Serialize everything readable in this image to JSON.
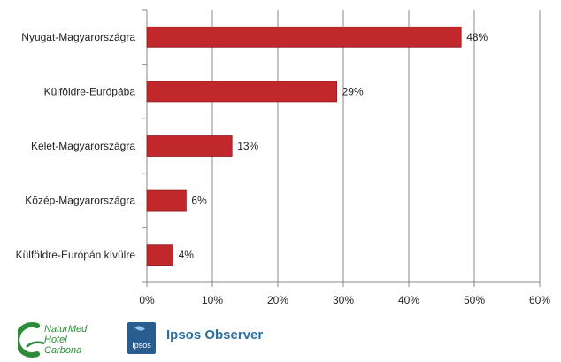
{
  "chart_data": {
    "type": "bar",
    "orientation": "horizontal",
    "categories": [
      "Nyugat-Magyarországra",
      "Külföldre-Európába",
      "Kelet-Magyarországra",
      "Közép-Magyarországra",
      "Külföldre-Európán kívülre"
    ],
    "values": [
      48,
      29,
      13,
      6,
      4
    ],
    "data_labels": [
      "48%",
      "29%",
      "13%",
      "6%",
      "4%"
    ],
    "xlim": [
      0,
      60
    ],
    "xticks": [
      0,
      10,
      20,
      30,
      40,
      50,
      60
    ],
    "xtick_labels": [
      "0%",
      "10%",
      "20%",
      "30%",
      "40%",
      "50%",
      "60%"
    ],
    "grid": true,
    "bar_color": "#c0282b",
    "title": "",
    "xlabel": "",
    "ylabel": ""
  },
  "footer": {
    "naturmed_logo": {
      "line1": "NaturMed",
      "line2": "Hotel",
      "line3": "Carbona",
      "color": "#2e8b3a"
    },
    "ipsos_logo": {
      "box_text": "Ipsos",
      "label": "Ipsos Observer",
      "color": "#2f6f9f"
    }
  }
}
